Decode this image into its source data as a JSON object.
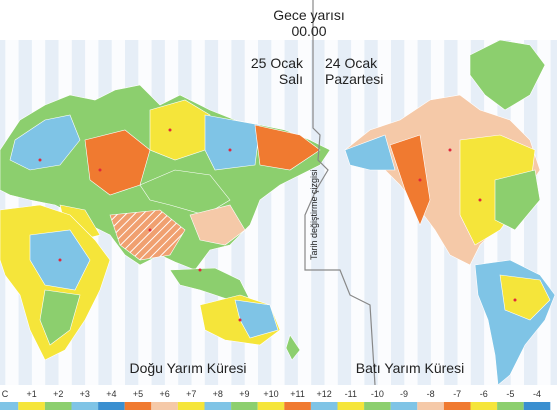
{
  "header": {
    "midnight": "Gece yarısı",
    "time": "00.00"
  },
  "left_date": {
    "date": "25 Ocak",
    "day": "Salı"
  },
  "right_date": {
    "date": "24 Ocak",
    "day": "Pazartesi"
  },
  "date_line_label": "Tarih değiştirme çizgisi",
  "hemispheres": {
    "east": "Doğu Yarım Küresi",
    "west": "Batı Yarım Küresi"
  },
  "time_zones": [
    "C",
    "+1",
    "+2",
    "+3",
    "+4",
    "+5",
    "+6",
    "+7",
    "+8",
    "+9",
    "+10",
    "+11",
    "+12",
    "-11",
    "-10",
    "-9",
    "-8",
    "-7",
    "-6",
    "-5",
    "-4"
  ]
}
